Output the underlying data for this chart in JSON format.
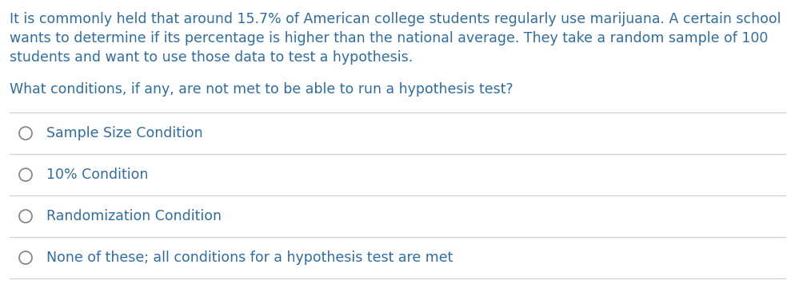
{
  "background_color": "#ffffff",
  "text_color": "#2e6da4",
  "paragraph_lines": [
    "It is commonly held that around 15.7% of American college students regularly use marijuana. A certain school",
    "wants to determine if its percentage is higher than the national average. They take a random sample of 100",
    "students and want to use those data to test a hypothesis."
  ],
  "question": "What conditions, if any, are not met to be able to run a hypothesis test?",
  "options": [
    "Sample Size Condition",
    "10% Condition",
    "Randomization Condition",
    "None of these; all conditions for a hypothesis test are met"
  ],
  "text_fontsize": 12.5,
  "option_fontsize": 12.5,
  "divider_color": "#cccccc",
  "circle_color": "#888888",
  "fig_width": 9.94,
  "fig_height": 3.76,
  "dpi": 100
}
